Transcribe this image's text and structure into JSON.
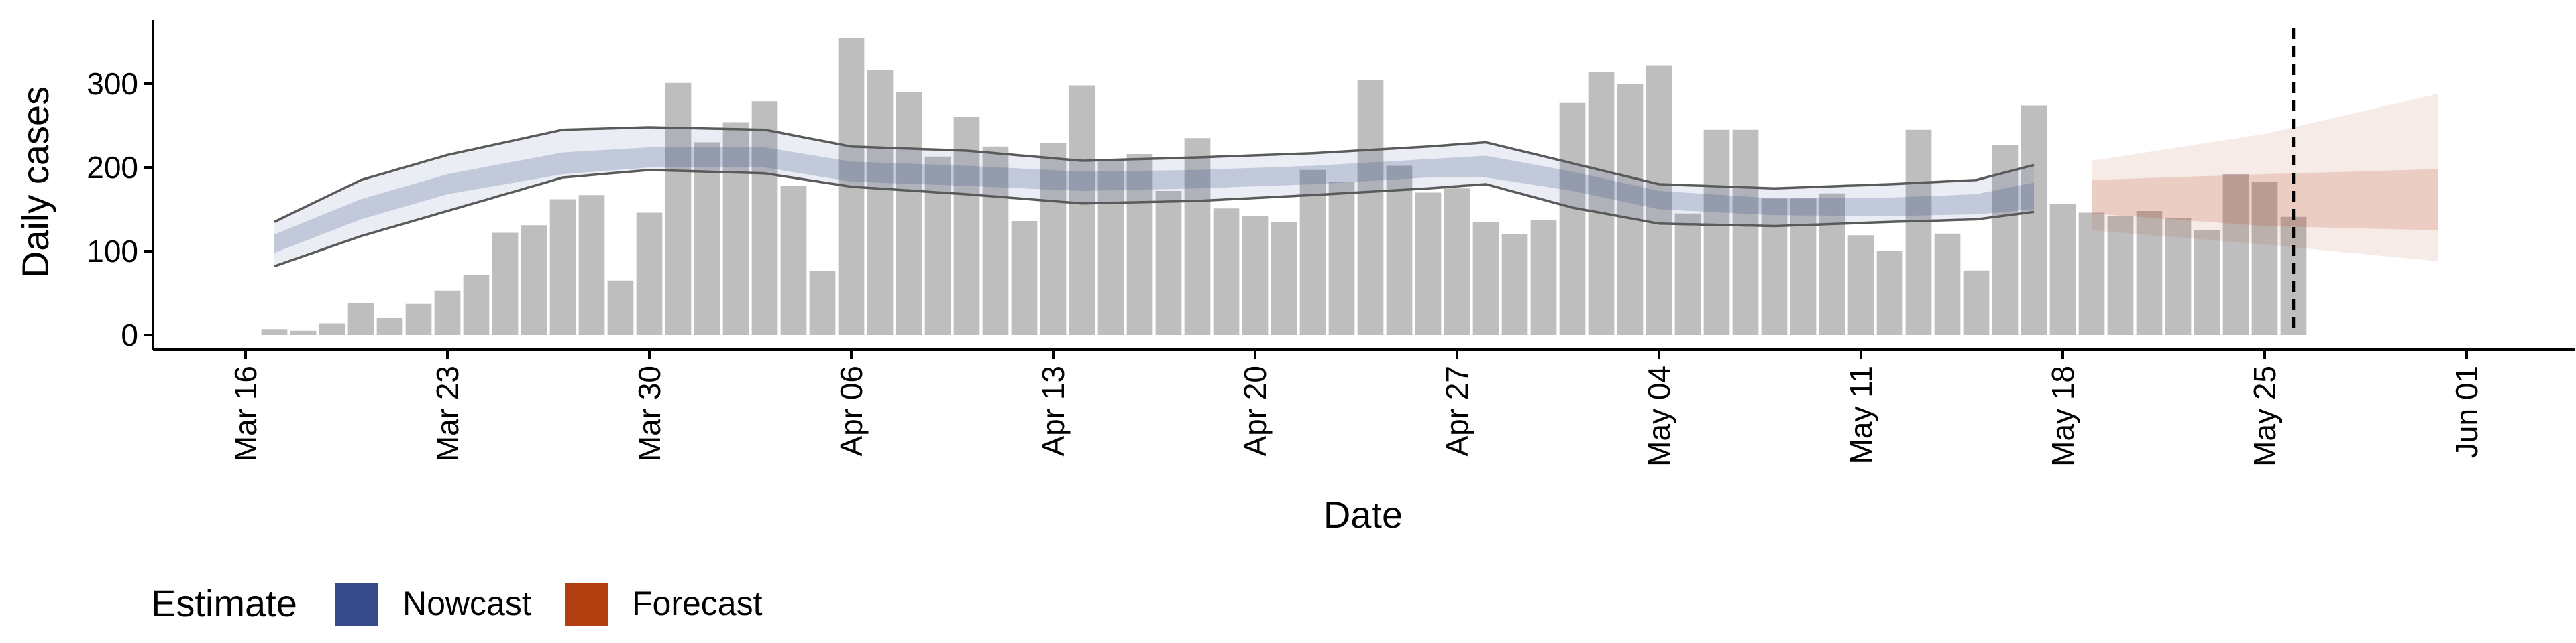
{
  "chart_data": {
    "type": "bar",
    "xlabel": "Date",
    "ylabel": "Daily cases",
    "ylim": [
      -15,
      370
    ],
    "y_ticks": [
      0,
      100,
      200,
      300
    ],
    "x_range": [
      "2020-03-15",
      "2020-06-01"
    ],
    "x_ticks": [
      "2020-03-16",
      "2020-03-23",
      "2020-03-30",
      "2020-04-06",
      "2020-04-13",
      "2020-04-20",
      "2020-04-27",
      "2020-05-04",
      "2020-05-11",
      "2020-05-18",
      "2020-05-25",
      "2020-06-01"
    ],
    "x_tick_labels": [
      "Mar 16",
      "Mar 23",
      "Mar 30",
      "Apr 06",
      "Apr 13",
      "Apr 20",
      "Apr 27",
      "May 04",
      "May 11",
      "May 18",
      "May 25",
      "Jun 01"
    ],
    "bar_start_date": "2020-03-17",
    "bar_values": [
      7,
      5,
      14,
      38,
      20,
      37,
      53,
      72,
      122,
      131,
      162,
      167,
      65,
      146,
      301,
      230,
      254,
      279,
      178,
      76,
      355,
      316,
      290,
      213,
      260,
      225,
      136,
      229,
      298,
      210,
      216,
      172,
      235,
      151,
      142,
      135,
      197,
      183,
      304,
      202,
      170,
      175,
      135,
      120,
      137,
      277,
      314,
      300,
      322,
      145,
      245,
      245,
      163,
      163,
      169,
      119,
      100,
      245,
      121,
      77,
      227,
      274,
      156,
      146,
      142,
      148,
      140,
      125,
      192,
      183,
      141
    ],
    "vline_date": "2020-05-26",
    "legend": {
      "title": "Estimate",
      "position": "bottom",
      "items": [
        {
          "label": "Nowcast",
          "color": "#344a8a"
        },
        {
          "label": "Forecast",
          "color": "#b33e0f"
        }
      ]
    },
    "series": [
      {
        "name": "Nowcast",
        "start_date": "2020-03-17",
        "end_date": "2020-05-17",
        "knots_date": [
          "2020-03-17",
          "2020-03-20",
          "2020-03-23",
          "2020-03-27",
          "2020-03-30",
          "2020-04-03",
          "2020-04-06",
          "2020-04-10",
          "2020-04-14",
          "2020-04-18",
          "2020-04-22",
          "2020-04-26",
          "2020-04-28",
          "2020-05-01",
          "2020-05-04",
          "2020-05-08",
          "2020-05-12",
          "2020-05-15",
          "2020-05-17"
        ],
        "median": [
          108,
          150,
          180,
          205,
          212,
          212,
          195,
          190,
          183,
          185,
          190,
          198,
          200,
          183,
          160,
          153,
          153,
          156,
          165
        ],
        "inner_lower": [
          98,
          138,
          168,
          192,
          200,
          200,
          183,
          178,
          172,
          175,
          180,
          188,
          188,
          172,
          150,
          143,
          142,
          144,
          150
        ],
        "inner_upper": [
          120,
          162,
          192,
          218,
          224,
          224,
          207,
          202,
          195,
          197,
          202,
          210,
          214,
          195,
          172,
          163,
          164,
          168,
          182
        ],
        "outer_lower": [
          82,
          118,
          148,
          188,
          197,
          193,
          177,
          168,
          157,
          160,
          167,
          175,
          180,
          152,
          133,
          130,
          135,
          138,
          147
        ],
        "outer_upper": [
          135,
          185,
          215,
          245,
          248,
          245,
          225,
          220,
          208,
          212,
          217,
          225,
          230,
          205,
          180,
          175,
          180,
          185,
          203
        ]
      },
      {
        "name": "Forecast",
        "start_date": "2020-05-19",
        "end_date": "2020-05-31",
        "knots_date": [
          "2020-05-19",
          "2020-05-25",
          "2020-05-31"
        ],
        "median": [
          165,
          162,
          163
        ],
        "inner_lower": [
          145,
          130,
          125
        ],
        "inner_upper": [
          185,
          192,
          198
        ],
        "outer_lower": [
          125,
          108,
          88
        ],
        "outer_upper": [
          208,
          240,
          288
        ]
      }
    ]
  }
}
